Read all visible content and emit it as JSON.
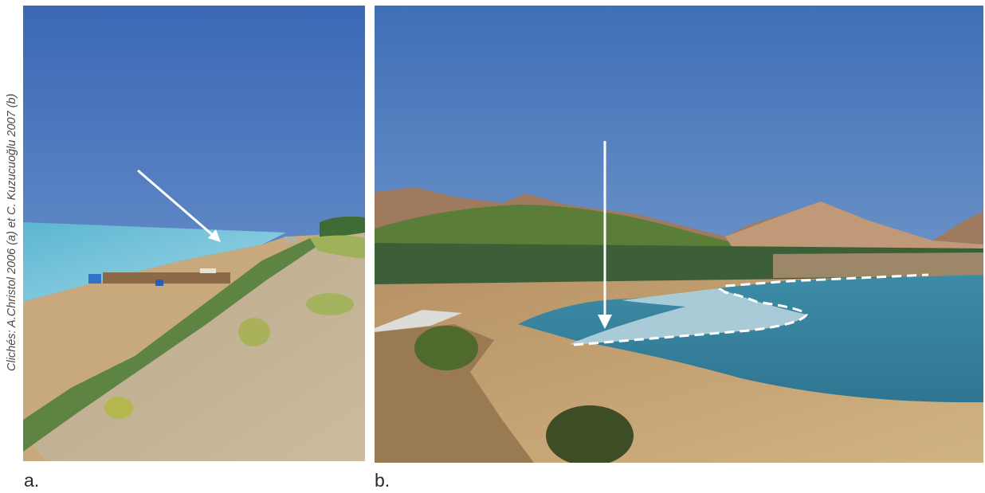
{
  "credit": "Clichés: A.Christol 2006 (a) et C. Kuzucuoğlu 2007 (b)",
  "panels": [
    {
      "label": "a.",
      "scene": "sandy-beach-dune-with-arrow"
    },
    {
      "label": "b.",
      "scene": "lake-bay-with-dashed-outline-and-arrow"
    }
  ],
  "colors": {
    "sky": "#3d6fb8",
    "lake": "#3a8eaa",
    "sand": "#c9aa7f",
    "vegetation": "#4f7a34",
    "arrow": "#ffffff"
  }
}
